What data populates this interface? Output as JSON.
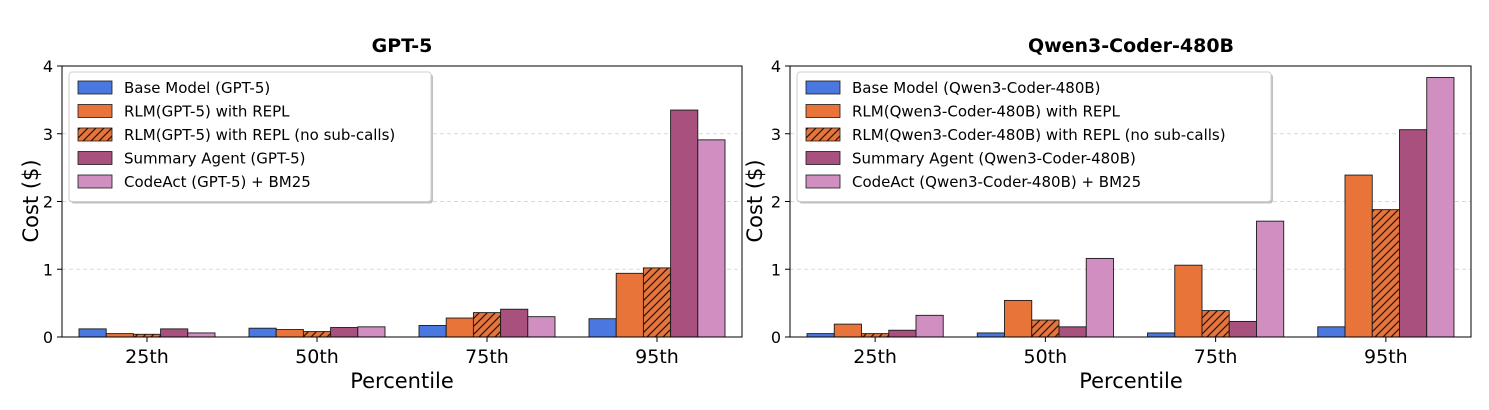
{
  "colors": {
    "base": "#4a78e0",
    "rlm": "#e8743a",
    "rlm_nosub": "#e8743a",
    "summary": "#a8507e",
    "codeact": "#d08fc0"
  },
  "chart_data": [
    {
      "type": "bar",
      "title": "GPT-5",
      "xlabel": "Percentile",
      "ylabel": "Cost ($)",
      "ylim": [
        0,
        4
      ],
      "yticks": [
        "0",
        "1",
        "2",
        "3",
        "4"
      ],
      "grid": "y-dashed",
      "legend_position": "top-left",
      "categories": [
        "25th",
        "50th",
        "75th",
        "95th"
      ],
      "series": [
        {
          "name": "Base Model (GPT-5)",
          "color_key": "base",
          "hatch": false,
          "values": [
            0.12,
            0.13,
            0.17,
            0.27
          ]
        },
        {
          "name": "RLM(GPT-5) with REPL",
          "color_key": "rlm",
          "hatch": false,
          "values": [
            0.05,
            0.11,
            0.28,
            0.94
          ]
        },
        {
          "name": "RLM(GPT-5) with REPL (no sub-calls)",
          "color_key": "rlm_nosub",
          "hatch": true,
          "values": [
            0.04,
            0.08,
            0.36,
            1.02
          ]
        },
        {
          "name": "Summary Agent (GPT-5)",
          "color_key": "summary",
          "hatch": false,
          "values": [
            0.12,
            0.14,
            0.41,
            3.35
          ]
        },
        {
          "name": "CodeAct (GPT-5) + BM25",
          "color_key": "codeact",
          "hatch": false,
          "values": [
            0.06,
            0.15,
            0.3,
            2.91
          ]
        }
      ]
    },
    {
      "type": "bar",
      "title": "Qwen3-Coder-480B",
      "xlabel": "Percentile",
      "ylabel": "Cost ($)",
      "ylim": [
        0,
        4
      ],
      "yticks": [
        "0",
        "1",
        "2",
        "3",
        "4"
      ],
      "grid": "y-dashed",
      "legend_position": "top-left",
      "categories": [
        "25th",
        "50th",
        "75th",
        "95th"
      ],
      "series": [
        {
          "name": "Base Model (Qwen3-Coder-480B)",
          "color_key": "base",
          "hatch": false,
          "values": [
            0.05,
            0.06,
            0.06,
            0.15
          ]
        },
        {
          "name": "RLM(Qwen3-Coder-480B) with REPL",
          "color_key": "rlm",
          "hatch": false,
          "values": [
            0.19,
            0.54,
            1.06,
            2.39
          ]
        },
        {
          "name": "RLM(Qwen3-Coder-480B) with REPL (no sub-calls)",
          "color_key": "rlm_nosub",
          "hatch": true,
          "values": [
            0.05,
            0.25,
            0.39,
            1.88
          ]
        },
        {
          "name": "Summary Agent (Qwen3-Coder-480B)",
          "color_key": "summary",
          "hatch": false,
          "values": [
            0.1,
            0.15,
            0.23,
            3.06
          ]
        },
        {
          "name": "CodeAct (Qwen3-Coder-480B) + BM25",
          "color_key": "codeact",
          "hatch": false,
          "values": [
            0.32,
            1.16,
            1.71,
            3.83
          ]
        }
      ]
    }
  ]
}
